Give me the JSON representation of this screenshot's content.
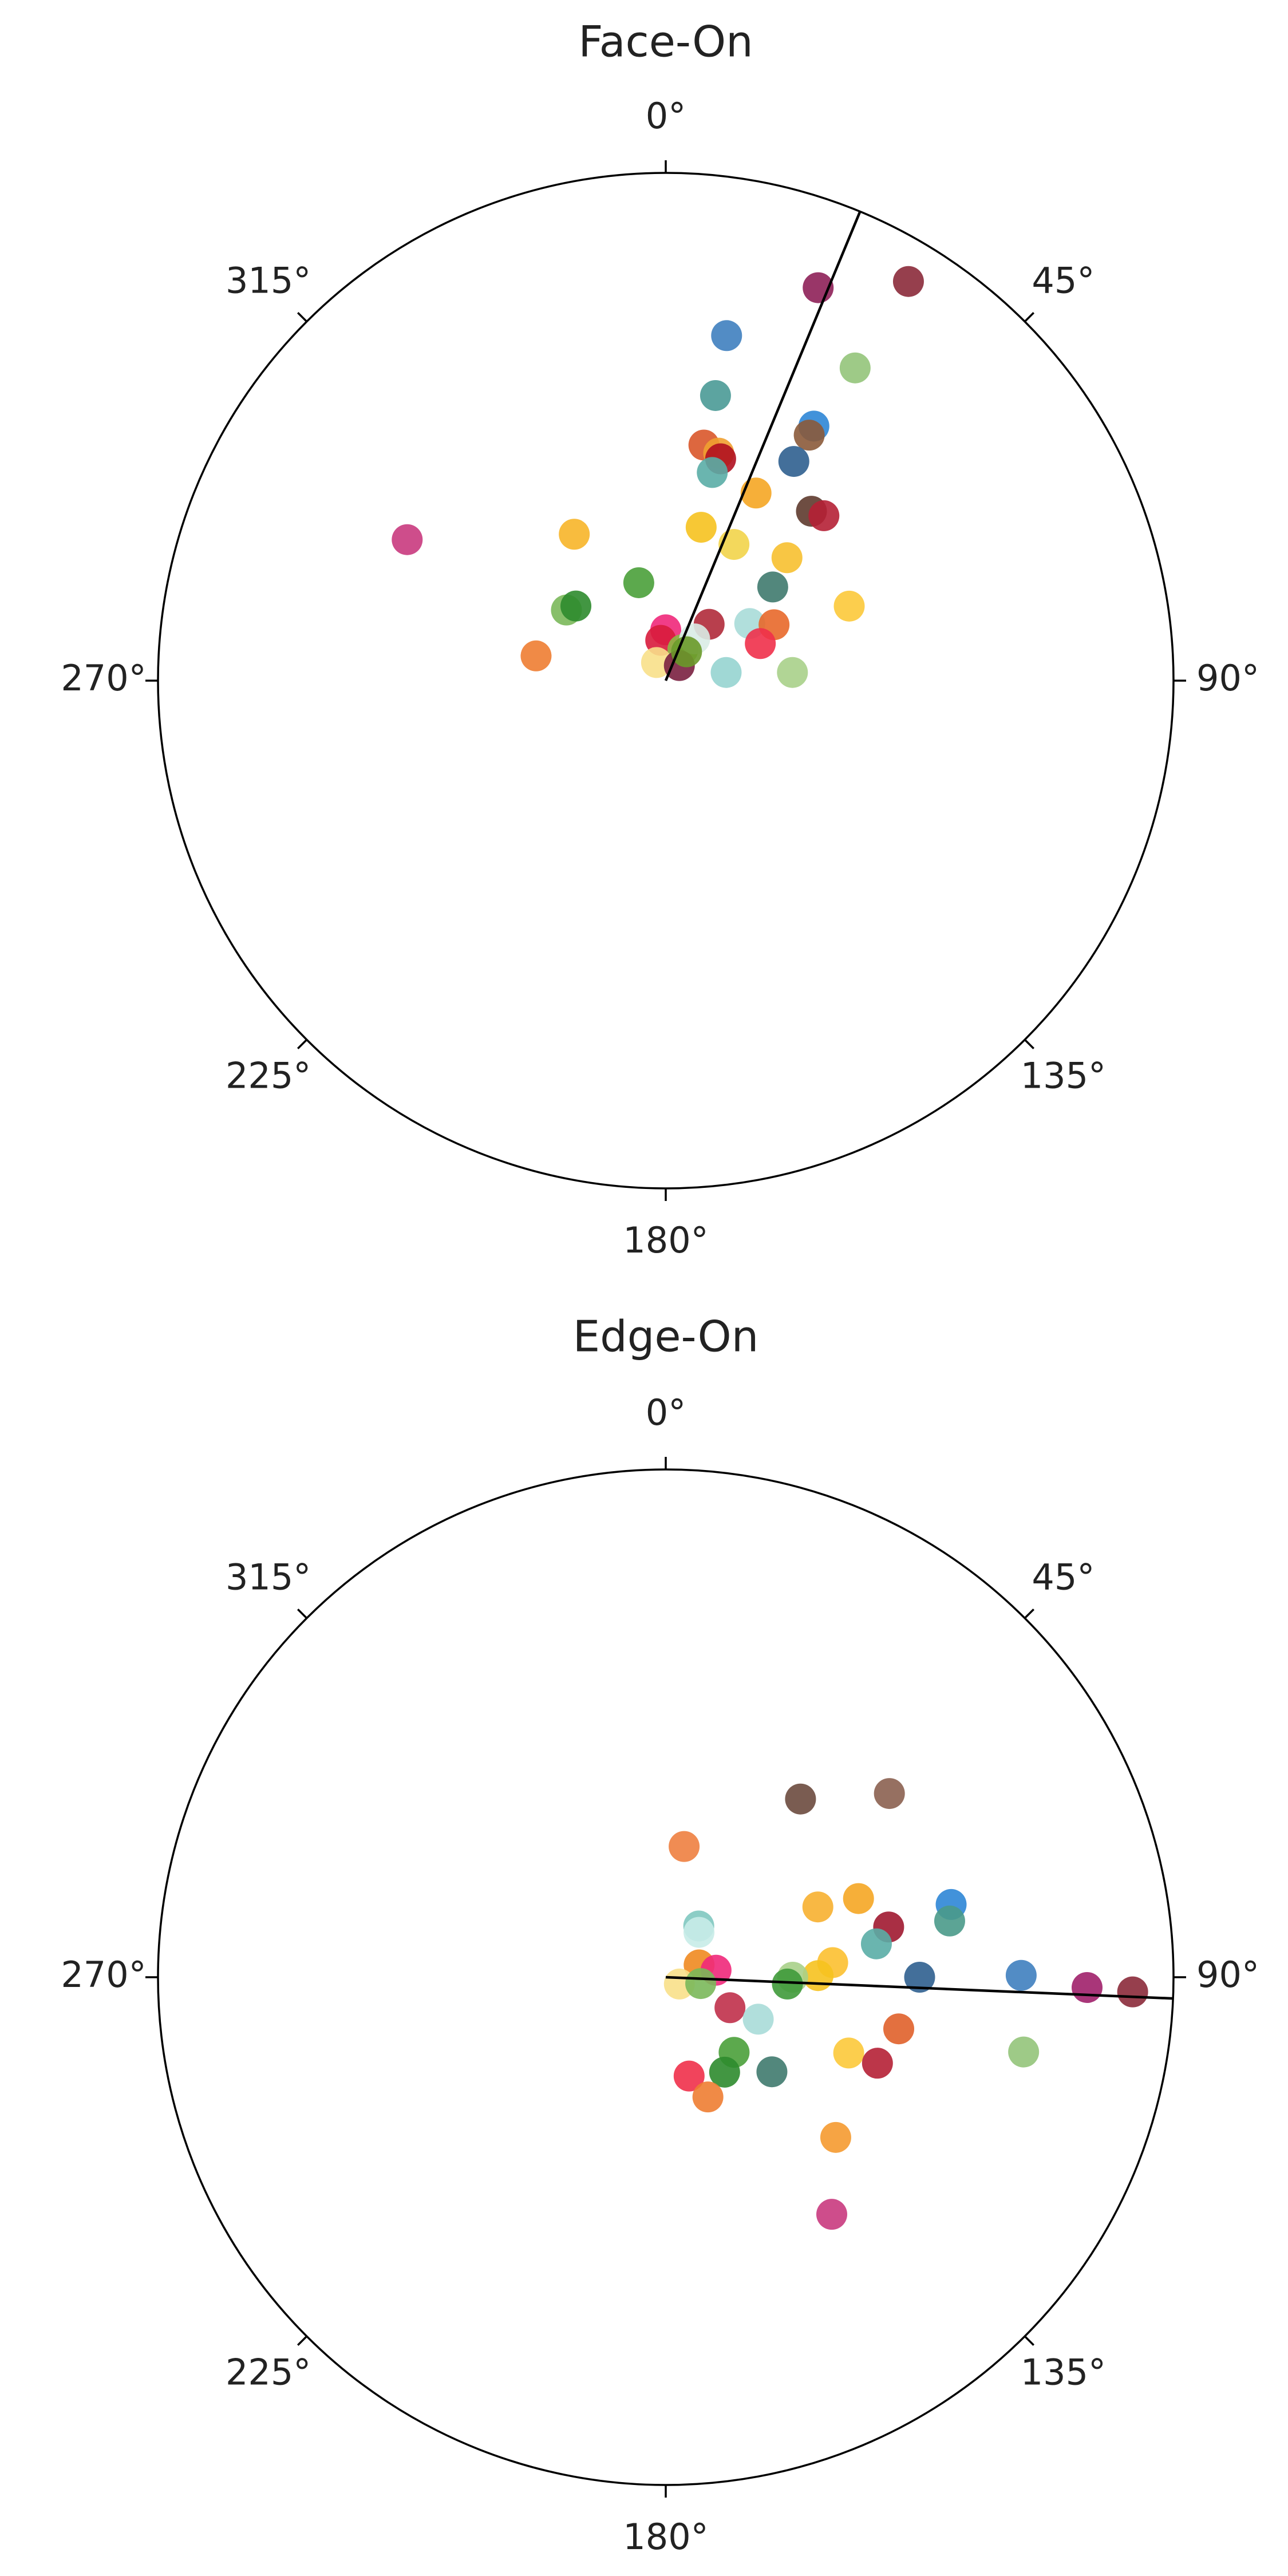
{
  "chart_data": [
    {
      "type": "polar",
      "title": "Face-On",
      "rlim": [
        0,
        1
      ],
      "thetaticks": [
        {
          "value": 0,
          "label": "0°"
        },
        {
          "value": 45,
          "label": "45°"
        },
        {
          "value": 90,
          "label": "90°"
        },
        {
          "value": 135,
          "label": "135°"
        },
        {
          "value": 180,
          "label": "180°"
        },
        {
          "value": 225,
          "label": "225°"
        },
        {
          "value": 270,
          "label": "270°"
        },
        {
          "value": 315,
          "label": "315°"
        }
      ],
      "reference_theta": 22.5,
      "theta": [
        21.2,
        31.3,
        10.0,
        31.2,
        9.9,
        30.2,
        30.3,
        9.2,
        13.1,
        13.9,
        12.6,
        30.3,
        25.7,
        40.7,
        43.8,
        328,
        298.6,
        13.0,
        26.6,
        44.6,
        344.6,
        48.8,
        305.4,
        309.7,
        67.9,
        37.6,
        55.8,
        62.7,
        0,
        352.9,
        68.6,
        280.8,
        28.8,
        34.7,
        333,
        42,
        82.3,
        86.3,
        35.8
      ],
      "r": [
        0.83,
        0.92,
        0.69,
        0.72,
        0.57,
        0.58,
        0.56,
        0.47,
        0.46,
        0.45,
        0.42,
        0.5,
        0.41,
        0.44,
        0.45,
        0.34,
        0.58,
        0.31,
        0.3,
        0.34,
        0.2,
        0.28,
        0.24,
        0.23,
        0.39,
        0.14,
        0.2,
        0.24,
        0.1,
        0.08,
        0.2,
        0.26,
        0.07,
        0.1,
        0.04,
        0.04,
        0.12,
        0.25,
        0.07
      ],
      "colors": [
        "#8e2058",
        "#8b2a3a",
        "#3f7fbf",
        "#94c47a",
        "#4a9a96",
        "#2e86d6",
        "#8b5a3a",
        "#d9562a",
        "#f0a030",
        "#b01020",
        "#5aada6",
        "#2f5f8f",
        "#f5a623",
        "#5e3a2e",
        "#b52035",
        "#f7b529",
        "#c93a7e",
        "#f6c21f",
        "#f2d44a",
        "#f7c030",
        "#4aa03a",
        "#3f7a6e",
        "#7ab85a",
        "#2e8b2e",
        "#fcc93a",
        "#b02a3a",
        "#a8dcd8",
        "#e8682a",
        "#f0287a",
        "#d81b3c",
        "#f0304a",
        "#ee7d32",
        "#8db846",
        "#d9ece6",
        "#f8e08a",
        "#7a2040",
        "#96d4d0",
        "#a8d08a",
        "#6a9a2a"
      ]
    },
    {
      "type": "polar",
      "title": "Edge-On",
      "rlim": [
        0,
        1
      ],
      "thetaticks": [
        {
          "value": 0,
          "label": "0°"
        },
        {
          "value": 45,
          "label": "45°"
        },
        {
          "value": 90,
          "label": "90°"
        },
        {
          "value": 135,
          "label": "135°"
        },
        {
          "value": 180,
          "label": "180°"
        },
        {
          "value": 225,
          "label": "225°"
        },
        {
          "value": 270,
          "label": "270°"
        },
        {
          "value": 315,
          "label": "315°"
        }
      ],
      "reference_theta": 92.4,
      "theta": [
        37.1,
        50.6,
        8.0,
        65.2,
        67.8,
        75.7,
        78.8,
        77.3,
        81.0,
        32.8,
        36.5,
        85.0,
        89.4,
        90,
        93.2,
        90,
        89.7,
        91.4,
        91.8,
        69.8,
        82.1,
        116.6,
        100.3,
        115.4,
        114.4,
        102.5,
        101.8,
        112.5,
        112.1,
        137.7,
        148.2,
        131.7,
        166.7,
        160.6,
        133.3,
        145.0
      ],
      "r": [
        0.44,
        0.57,
        0.26,
        0.33,
        0.41,
        0.58,
        0.57,
        0.45,
        0.42,
        0.12,
        0.11,
        0.33,
        0.3,
        0.25,
        0.24,
        0.5,
        0.7,
        0.83,
        0.92,
        0.07,
        0.1,
        0.03,
        0.07,
        0.14,
        0.2,
        0.47,
        0.72,
        0.39,
        0.45,
        0.2,
        0.22,
        0.28,
        0.2,
        0.25,
        0.46,
        0.57
      ],
      "colors": [
        "#6b4a3e",
        "#8b6050",
        "#ee8040",
        "#f7b030",
        "#f5a623",
        "#2e86d6",
        "#4a9a8a",
        "#a01830",
        "#5aada6",
        "#80c8c0",
        "#c8ece8",
        "#fcc030",
        "#f6c21f",
        "#a8d08a",
        "#3f9a3a",
        "#2f5f8f",
        "#3f7fbf",
        "#a0206a",
        "#8b2a3a",
        "#f08a20",
        "#f0287a",
        "#f8e08a",
        "#7ab85a",
        "#c0304a",
        "#a8dcd8",
        "#e0602a",
        "#94c47a",
        "#fcc93a",
        "#b52035",
        "#4aa03a",
        "#2e8b2e",
        "#3f7a6e",
        "#f0304a",
        "#ee7d32",
        "#f59a30",
        "#c93a7e"
      ]
    }
  ]
}
